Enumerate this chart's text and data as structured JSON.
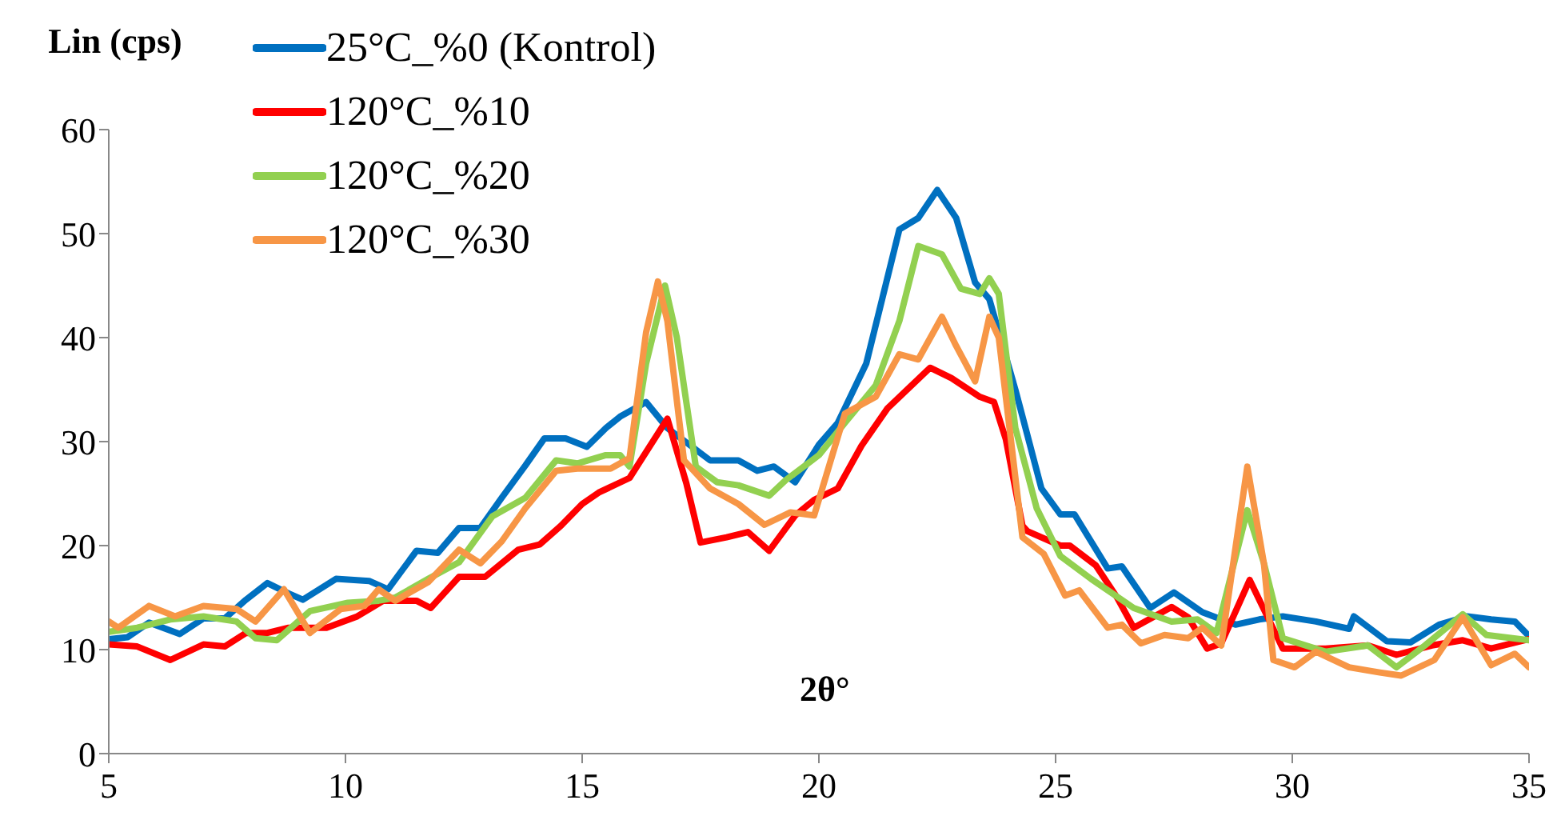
{
  "chart_data": {
    "type": "line",
    "ylabel": "Lin (cps)",
    "xlabel": "2θ°",
    "xlim": [
      5,
      35
    ],
    "xticks": [
      5,
      10,
      15,
      20,
      25,
      30,
      35
    ],
    "ylim": [
      0,
      60
    ],
    "yticks": [
      0,
      10,
      20,
      30,
      40,
      50,
      60
    ],
    "grid": false,
    "legend": "top left",
    "marker": "none",
    "line_style": "solid",
    "series": [
      {
        "name": "25°C_%0 (Kontrol)",
        "color": "#0070c0",
        "x": [
          5,
          5.4,
          5.85,
          6.5,
          7,
          7.45,
          7.9,
          8.35,
          8.8,
          9.1,
          9.8,
          10.5,
          10.9,
          11.5,
          11.95,
          12.4,
          12.85,
          13.3,
          13.8,
          14.2,
          14.65,
          15.1,
          15.5,
          15.8,
          16.35,
          16.8,
          17.7,
          18.3,
          18.7,
          19.05,
          19.5,
          20,
          20.4,
          21,
          21.7,
          22.1,
          22.5,
          22.9,
          23.3,
          23.6,
          24.15,
          24.4,
          24.7,
          25.1,
          25.4,
          26.1,
          26.4,
          27,
          27.5,
          28.1,
          28.8,
          29.3,
          29.8,
          30.5,
          31.2,
          31.3,
          32,
          32.5,
          33.1,
          33.7,
          34.2,
          34.7,
          35
        ],
        "values": [
          11,
          11.2,
          12.6,
          11.5,
          13,
          13,
          14.8,
          16.4,
          15.4,
          14.8,
          16.8,
          16.6,
          15.8,
          19.5,
          19.3,
          21.7,
          21.7,
          24.6,
          27.7,
          30.3,
          30.3,
          29.5,
          31.3,
          32.4,
          33.8,
          31.3,
          28.2,
          28.2,
          27.2,
          27.6,
          26.1,
          29.7,
          31.8,
          37.5,
          50.4,
          51.5,
          54.2,
          51.5,
          45.3,
          43.7,
          35,
          30.7,
          25.5,
          23,
          23,
          17.8,
          18,
          14,
          15.5,
          13.6,
          12.4,
          12.9,
          13.2,
          12.7,
          12,
          13.2,
          10.8,
          10.7,
          12.4,
          13.2,
          12.9,
          12.7,
          11.3
        ]
      },
      {
        "name": "120°C_%10",
        "color": "#ff0000",
        "x": [
          5,
          5.6,
          6.3,
          7,
          7.45,
          7.9,
          8.35,
          8.8,
          9.6,
          10.25,
          10.8,
          11.5,
          11.8,
          12.4,
          12.95,
          13.65,
          14.1,
          14.55,
          15,
          15.35,
          16,
          16.8,
          17.2,
          17.5,
          18.05,
          18.5,
          18.95,
          19.5,
          19.9,
          20.4,
          20.9,
          21.45,
          22.35,
          22.8,
          23.4,
          23.7,
          23.95,
          24.3,
          24.4,
          25.1,
          25.3,
          25.85,
          26.3,
          26.65,
          27.45,
          27.8,
          28.2,
          28.5,
          29.1,
          29.8,
          30.7,
          31.6,
          32.2,
          32.95,
          33.6,
          34.2,
          35
        ],
        "values": [
          10.5,
          10.3,
          9,
          10.5,
          10.3,
          11.6,
          11.6,
          12.1,
          12.1,
          13.2,
          14.7,
          14.7,
          14,
          17,
          17,
          19.6,
          20.1,
          21.9,
          24,
          25.1,
          26.5,
          32.2,
          26,
          20.3,
          20.8,
          21.3,
          19.5,
          22.9,
          24.4,
          25.5,
          29.6,
          33.2,
          37.1,
          36.1,
          34.3,
          33.8,
          30.2,
          21.9,
          21.4,
          20,
          20,
          18.1,
          15,
          12.1,
          14.1,
          13.1,
          10.1,
          10.6,
          16.7,
          10.1,
          10.1,
          10.4,
          9.5,
          10.4,
          10.9,
          10.1,
          11
        ]
      },
      {
        "name": "120°C_%20",
        "color": "#92d050",
        "x": [
          5,
          5.6,
          6.3,
          7,
          7.7,
          8.1,
          8.55,
          9.25,
          10.05,
          10.7,
          11.05,
          11.75,
          12.4,
          13.1,
          13.8,
          14.45,
          14.9,
          15.5,
          15.8,
          16,
          16.35,
          16.75,
          17,
          17.4,
          17.85,
          18.3,
          18.95,
          19.3,
          20,
          20.55,
          21.2,
          21.7,
          22.1,
          22.6,
          23,
          23.4,
          23.6,
          23.8,
          24.15,
          24.6,
          25.1,
          25.75,
          26.65,
          27.45,
          28,
          28.4,
          29.05,
          29.4,
          29.8,
          30.7,
          31.6,
          32.2,
          32.8,
          33.6,
          34.1,
          35
        ],
        "values": [
          11.7,
          12.1,
          12.9,
          13.2,
          12.7,
          11.1,
          10.9,
          13.7,
          14.5,
          14.7,
          15,
          16.8,
          18.4,
          22.8,
          24.6,
          28.2,
          27.9,
          28.7,
          28.7,
          27.6,
          37.5,
          45,
          40,
          27.6,
          26.1,
          25.8,
          24.8,
          26.3,
          28.7,
          31.8,
          35.4,
          41.6,
          48.8,
          48,
          44.7,
          44.2,
          45.7,
          44.2,
          31.3,
          23.6,
          19,
          16.8,
          14,
          12.7,
          12.9,
          11.6,
          23.4,
          18.3,
          11.1,
          9.8,
          10.4,
          8.3,
          10.4,
          13.4,
          11.4,
          10.9
        ]
      },
      {
        "name": "120°C_%30",
        "color": "#f79646",
        "x": [
          5,
          5.2,
          5.85,
          6.4,
          7,
          7.7,
          8.1,
          8.7,
          9.25,
          9.9,
          10.4,
          10.7,
          11.05,
          11.75,
          12.4,
          12.85,
          13.3,
          13.8,
          14.45,
          14.9,
          15.6,
          16,
          16.35,
          16.6,
          16.8,
          17.15,
          17.7,
          18.3,
          18.85,
          19.4,
          19.9,
          20.55,
          21.2,
          21.7,
          22.1,
          22.6,
          22.9,
          23.3,
          23.6,
          23.8,
          24.3,
          24.75,
          25.2,
          25.5,
          26.1,
          26.4,
          26.8,
          27.3,
          27.8,
          28.1,
          28.5,
          29.05,
          29.4,
          29.6,
          30.05,
          30.5,
          31.2,
          31.85,
          32.3,
          33,
          33.6,
          34.2,
          34.7,
          35
        ],
        "values": [
          12.7,
          12.1,
          14.2,
          13.2,
          14.2,
          13.9,
          12.7,
          15.8,
          11.6,
          13.9,
          14.2,
          15.8,
          14.7,
          16.5,
          19.6,
          18.3,
          20.4,
          23.6,
          27.2,
          27.4,
          27.4,
          28.4,
          40.5,
          45.4,
          41.6,
          28.2,
          25.5,
          24,
          22,
          23.2,
          22.9,
          32.7,
          34.3,
          38.4,
          37.9,
          42,
          39.2,
          35.8,
          42,
          40,
          20.8,
          19.2,
          15.2,
          15.7,
          12.1,
          12.4,
          10.6,
          11.4,
          11.1,
          12.1,
          10.4,
          27.6,
          18.3,
          9,
          8.3,
          9.8,
          8.3,
          7.8,
          7.5,
          9,
          13.1,
          8.5,
          9.6,
          8.3
        ]
      }
    ]
  }
}
